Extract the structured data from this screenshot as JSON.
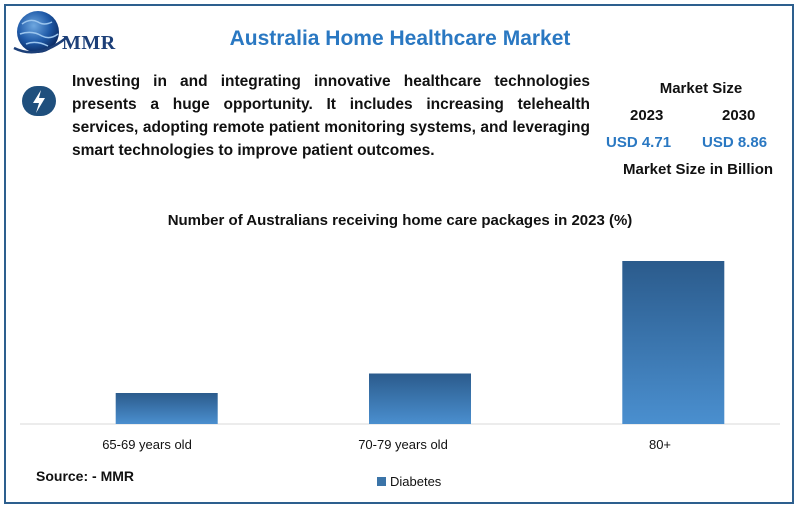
{
  "header": {
    "brand": "MMR",
    "title": "Australia Home Healthcare Market"
  },
  "intro": {
    "icon": "lightning-bolt-icon",
    "text": "Investing in and integrating innovative healthcare technologies presents a huge opportunity. It includes increasing telehealth services, adopting remote patient monitoring systems, and leveraging smart technologies to improve patient outcomes."
  },
  "market_size": {
    "heading": "Market Size",
    "year_1": "2023",
    "value_1": "USD 4.71",
    "year_2": "2030",
    "value_2": "USD 8.86",
    "unit_label": "Market Size in Billion"
  },
  "colors": {
    "accent": "#2a78c2",
    "bar_top": "#2b5b8c",
    "bar_bottom": "#4a8fcf",
    "frame": "#2d5f8e"
  },
  "chart_data": {
    "type": "bar",
    "title": "Number of Australians receiving home care packages in 2023 (%)",
    "categories": [
      "65-69 years old",
      "70-79 years old",
      "80+"
    ],
    "series": [
      {
        "name": "Diabetes",
        "values": [
          19,
          31,
          100
        ]
      }
    ],
    "ylim": [
      0,
      100
    ],
    "grid": false,
    "legend_position": "bottom"
  },
  "footer": {
    "source": "Source: - MMR"
  }
}
